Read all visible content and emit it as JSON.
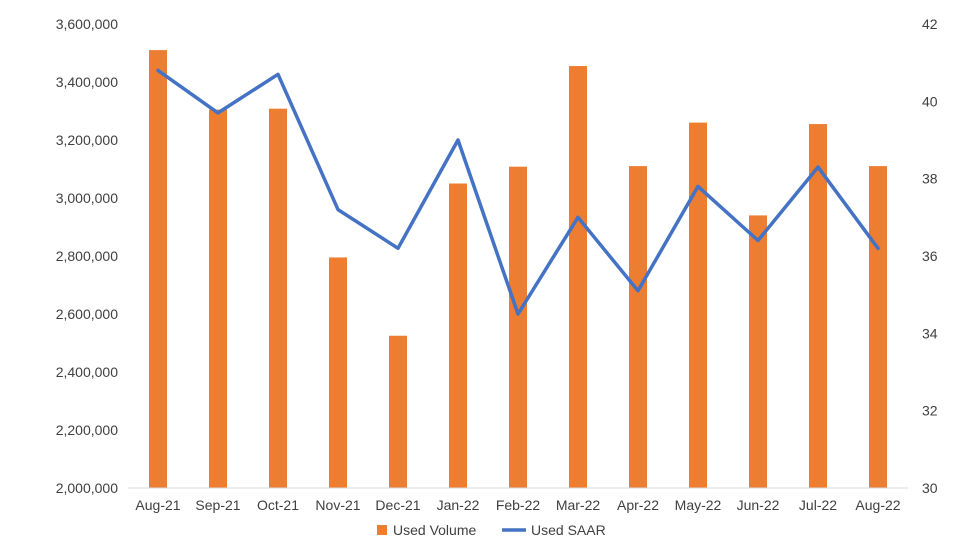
{
  "chart_data": {
    "type": "bar",
    "categories": [
      "Aug-21",
      "Sep-21",
      "Oct-21",
      "Nov-21",
      "Dec-21",
      "Jan-22",
      "Feb-22",
      "Mar-22",
      "Apr-22",
      "May-22",
      "Jun-22",
      "Jul-22",
      "Aug-22"
    ],
    "series": [
      {
        "name": "Used Volume",
        "type": "bar",
        "axis": "left",
        "color": "#ED7D31",
        "values": [
          3510000,
          3305000,
          3308000,
          2795000,
          2525000,
          3050000,
          3108000,
          3455000,
          3110000,
          3260000,
          2940000,
          3255000,
          3110000
        ]
      },
      {
        "name": "Used SAAR",
        "type": "line",
        "axis": "right",
        "color": "#4472C4",
        "values": [
          40.8,
          39.7,
          40.7,
          37.2,
          36.2,
          39.0,
          34.5,
          37.0,
          35.1,
          37.8,
          36.4,
          38.3,
          36.2
        ]
      }
    ],
    "y_left": {
      "min": 2000000,
      "max": 3600000,
      "ticks": [
        "2,000,000",
        "2,200,000",
        "2,400,000",
        "2,600,000",
        "2,800,000",
        "3,000,000",
        "3,200,000",
        "3,400,000",
        "3,600,000"
      ]
    },
    "y_right": {
      "min": 30,
      "max": 42,
      "ticks": [
        "30",
        "32",
        "34",
        "36",
        "38",
        "40",
        "42"
      ]
    },
    "title": "",
    "xlabel": "",
    "ylabel": "",
    "grid": false,
    "legend_position": "bottom-center"
  }
}
